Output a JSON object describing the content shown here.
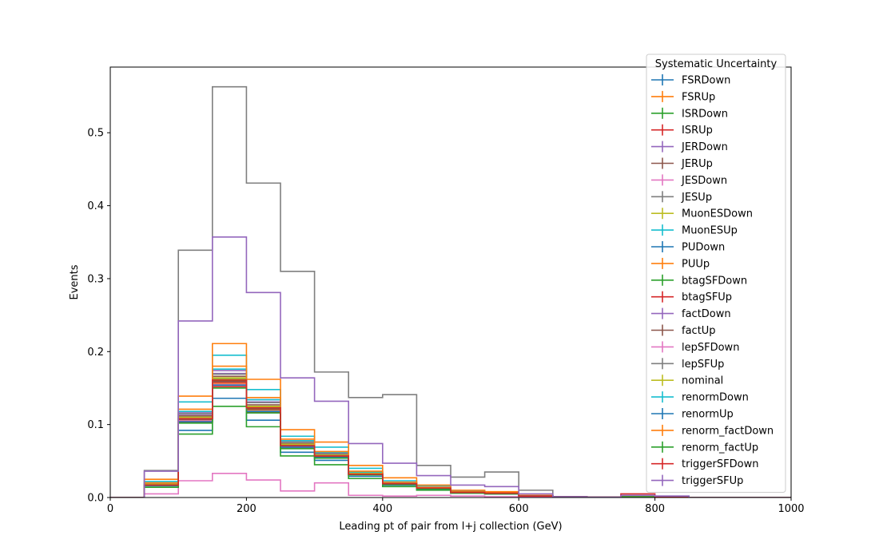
{
  "chart_data": {
    "type": "line",
    "style": "step-histogram",
    "xlabel": "Leading pt of pair from l+j collection (GeV)",
    "ylabel": "Events",
    "xlim": [
      0,
      1000
    ],
    "ylim": [
      0,
      0.59
    ],
    "xticks": [
      0,
      200,
      400,
      600,
      800,
      1000
    ],
    "yticks": [
      0.0,
      0.1,
      0.2,
      0.3,
      0.4,
      0.5
    ],
    "grid": false,
    "legend": {
      "title": "Systematic Uncertainty",
      "placement": "top-right"
    },
    "bin_edges": [
      0,
      50,
      100,
      150,
      200,
      250,
      300,
      350,
      400,
      450,
      500,
      550,
      600,
      650,
      700,
      750,
      800,
      850,
      900,
      950,
      1000
    ],
    "series": [
      {
        "name": "FSRDown",
        "color": "#1f77b4",
        "values": [
          0,
          0.018,
          0.11,
          0.163,
          0.123,
          0.072,
          0.058,
          0.033,
          0.019,
          0.013,
          0.007,
          0.006,
          0.002,
          0.001,
          0.0005,
          0.001,
          0.0008,
          0,
          0,
          0
        ]
      },
      {
        "name": "FSRUp",
        "color": "#ff7f0e",
        "values": [
          0,
          0.017,
          0.106,
          0.156,
          0.12,
          0.07,
          0.056,
          0.032,
          0.019,
          0.013,
          0.007,
          0.006,
          0.002,
          0.001,
          0.0005,
          0.001,
          0.0008,
          0,
          0,
          0
        ]
      },
      {
        "name": "ISRDown",
        "color": "#2ca02c",
        "values": [
          0,
          0.016,
          0.104,
          0.16,
          0.122,
          0.068,
          0.055,
          0.031,
          0.018,
          0.012,
          0.007,
          0.005,
          0.002,
          0.001,
          0.0005,
          0.001,
          0.0008,
          0,
          0,
          0
        ]
      },
      {
        "name": "ISRUp",
        "color": "#d62728",
        "values": [
          0,
          0.017,
          0.108,
          0.158,
          0.121,
          0.071,
          0.057,
          0.032,
          0.019,
          0.013,
          0.007,
          0.006,
          0.002,
          0.001,
          0.0005,
          0.001,
          0.0008,
          0,
          0,
          0
        ]
      },
      {
        "name": "JERDown",
        "color": "#9467bd",
        "values": [
          0,
          0.019,
          0.114,
          0.17,
          0.131,
          0.076,
          0.06,
          0.034,
          0.02,
          0.013,
          0.008,
          0.006,
          0.002,
          0.001,
          0.0005,
          0.001,
          0.0008,
          0,
          0,
          0
        ]
      },
      {
        "name": "JERUp",
        "color": "#8c564b",
        "values": [
          0,
          0.018,
          0.112,
          0.166,
          0.127,
          0.074,
          0.059,
          0.033,
          0.019,
          0.013,
          0.007,
          0.006,
          0.002,
          0.001,
          0.0005,
          0.001,
          0.0008,
          0,
          0,
          0
        ]
      },
      {
        "name": "JESDown",
        "color": "#e377c2",
        "values": [
          0,
          0.005,
          0.023,
          0.033,
          0.024,
          0.009,
          0.02,
          0.003,
          0.002,
          0.003,
          0.002,
          0.001,
          0.001,
          0,
          0,
          0,
          0,
          0,
          0,
          0
        ]
      },
      {
        "name": "JESUp",
        "color": "#7f7f7f",
        "values": [
          0,
          0.037,
          0.339,
          0.563,
          0.431,
          0.31,
          0.172,
          0.137,
          0.141,
          0.044,
          0.028,
          0.035,
          0.01,
          0.001,
          0.0005,
          0.003,
          0.002,
          0,
          0,
          0
        ]
      },
      {
        "name": "MuonESDown",
        "color": "#bcbd22",
        "values": [
          0,
          0.018,
          0.11,
          0.162,
          0.124,
          0.073,
          0.058,
          0.033,
          0.019,
          0.013,
          0.007,
          0.006,
          0.002,
          0.001,
          0.0005,
          0.001,
          0.0008,
          0,
          0,
          0
        ]
      },
      {
        "name": "MuonESUp",
        "color": "#17becf",
        "values": [
          0,
          0.022,
          0.131,
          0.195,
          0.148,
          0.084,
          0.069,
          0.04,
          0.023,
          0.016,
          0.009,
          0.007,
          0.003,
          0.001,
          0.0005,
          0.0012,
          0.001,
          0,
          0,
          0
        ]
      },
      {
        "name": "PUDown",
        "color": "#1f77b4",
        "values": [
          0,
          0.016,
          0.092,
          0.136,
          0.106,
          0.062,
          0.051,
          0.029,
          0.017,
          0.011,
          0.006,
          0.005,
          0.002,
          0.001,
          0.0005,
          0.0009,
          0.0007,
          0,
          0,
          0
        ]
      },
      {
        "name": "PUUp",
        "color": "#ff7f0e",
        "values": [
          0,
          0.025,
          0.139,
          0.211,
          0.162,
          0.093,
          0.076,
          0.044,
          0.027,
          0.017,
          0.01,
          0.008,
          0.003,
          0.001,
          0.0005,
          0.0013,
          0.001,
          0,
          0,
          0
        ]
      },
      {
        "name": "btagSFDown",
        "color": "#2ca02c",
        "values": [
          0,
          0.014,
          0.087,
          0.125,
          0.097,
          0.057,
          0.045,
          0.026,
          0.015,
          0.01,
          0.006,
          0.005,
          0.002,
          0.001,
          0.0004,
          0.0008,
          0.0006,
          0,
          0,
          0
        ]
      },
      {
        "name": "btagSFUp",
        "color": "#d62728",
        "values": [
          0,
          0.017,
          0.103,
          0.152,
          0.117,
          0.068,
          0.055,
          0.031,
          0.018,
          0.012,
          0.007,
          0.006,
          0.002,
          0.001,
          0.0005,
          0.001,
          0.0008,
          0,
          0,
          0
        ]
      },
      {
        "name": "factDown",
        "color": "#9467bd",
        "values": [
          0,
          0.019,
          0.117,
          0.174,
          0.134,
          0.078,
          0.061,
          0.035,
          0.02,
          0.014,
          0.008,
          0.006,
          0.002,
          0.001,
          0.0005,
          0.001,
          0.0008,
          0,
          0,
          0
        ]
      },
      {
        "name": "factUp",
        "color": "#8c564b",
        "values": [
          0,
          0.017,
          0.107,
          0.159,
          0.121,
          0.07,
          0.056,
          0.032,
          0.018,
          0.012,
          0.007,
          0.006,
          0.002,
          0.001,
          0.0005,
          0.001,
          0.0008,
          0,
          0,
          0
        ]
      },
      {
        "name": "lepSFDown",
        "color": "#e377c2",
        "values": [
          0,
          0.017,
          0.105,
          0.155,
          0.118,
          0.069,
          0.055,
          0.031,
          0.018,
          0.012,
          0.007,
          0.005,
          0.002,
          0.001,
          0.0005,
          0.0009,
          0.0007,
          0,
          0,
          0
        ]
      },
      {
        "name": "lepSFUp",
        "color": "#7f7f7f",
        "values": [
          0,
          0.019,
          0.115,
          0.169,
          0.13,
          0.076,
          0.06,
          0.034,
          0.02,
          0.013,
          0.008,
          0.006,
          0.002,
          0.001,
          0.0005,
          0.001,
          0.0008,
          0,
          0,
          0
        ]
      },
      {
        "name": "nominal",
        "color": "#bcbd22",
        "values": [
          0,
          0.018,
          0.11,
          0.164,
          0.125,
          0.073,
          0.058,
          0.033,
          0.019,
          0.013,
          0.007,
          0.006,
          0.002,
          0.001,
          0.0005,
          0.001,
          0.0008,
          0,
          0,
          0
        ]
      },
      {
        "name": "renormDown",
        "color": "#17becf",
        "values": [
          0,
          0.02,
          0.118,
          0.176,
          0.134,
          0.078,
          0.062,
          0.035,
          0.02,
          0.014,
          0.008,
          0.006,
          0.002,
          0.001,
          0.0005,
          0.0011,
          0.0009,
          0,
          0,
          0
        ]
      },
      {
        "name": "renormUp",
        "color": "#1f77b4",
        "values": [
          0,
          0.017,
          0.104,
          0.154,
          0.118,
          0.069,
          0.055,
          0.031,
          0.018,
          0.012,
          0.007,
          0.005,
          0.002,
          0.001,
          0.0005,
          0.0009,
          0.0007,
          0,
          0,
          0
        ]
      },
      {
        "name": "renorm_factDown",
        "color": "#ff7f0e",
        "values": [
          0,
          0.02,
          0.121,
          0.18,
          0.137,
          0.08,
          0.063,
          0.036,
          0.021,
          0.014,
          0.008,
          0.007,
          0.002,
          0.001,
          0.0005,
          0.0011,
          0.0009,
          0,
          0,
          0
        ]
      },
      {
        "name": "renorm_factUp",
        "color": "#2ca02c",
        "values": [
          0,
          0.017,
          0.102,
          0.15,
          0.116,
          0.067,
          0.054,
          0.031,
          0.018,
          0.012,
          0.007,
          0.005,
          0.002,
          0.001,
          0.0005,
          0.0009,
          0.0007,
          0,
          0,
          0
        ]
      },
      {
        "name": "triggerSFDown",
        "color": "#d62728",
        "values": [
          0,
          0.017,
          0.108,
          0.161,
          0.123,
          0.071,
          0.057,
          0.032,
          0.019,
          0.013,
          0.007,
          0.006,
          0.002,
          0.001,
          0.0005,
          0.005,
          0.0008,
          0,
          0,
          0
        ]
      },
      {
        "name": "triggerSFUp",
        "color": "#9467bd",
        "values": [
          0,
          0.036,
          0.242,
          0.357,
          0.281,
          0.164,
          0.132,
          0.074,
          0.047,
          0.03,
          0.017,
          0.015,
          0.005,
          0.001,
          0.0005,
          0.003,
          0.002,
          0,
          0,
          0
        ]
      }
    ]
  }
}
